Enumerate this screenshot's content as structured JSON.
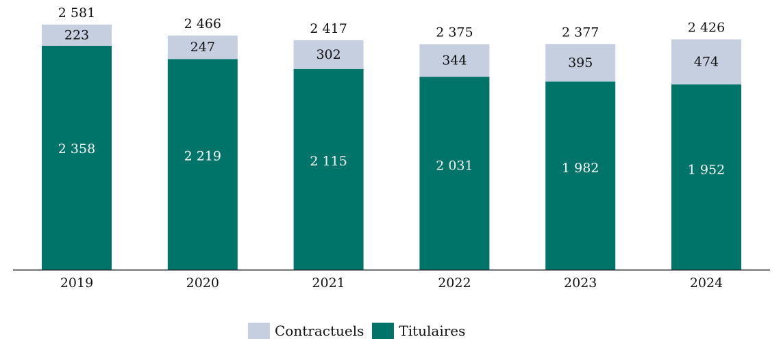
{
  "chart_data": {
    "type": "bar",
    "stacked": true,
    "categories": [
      "2019",
      "2020",
      "2021",
      "2022",
      "2023",
      "2024"
    ],
    "series": [
      {
        "name": "Titulaires",
        "color": "#007469",
        "values": [
          2358,
          2219,
          2115,
          2031,
          1982,
          1952
        ],
        "labels": [
          "2 358",
          "2 219",
          "2 115",
          "2 031",
          "1 982",
          "1 952"
        ]
      },
      {
        "name": "Contractuels",
        "color": "#c5cfe0",
        "values": [
          223,
          247,
          302,
          344,
          395,
          474
        ],
        "labels": [
          "223",
          "247",
          "302",
          "344",
          "395",
          "474"
        ]
      }
    ],
    "totals": [
      2581,
      2466,
      2417,
      2375,
      2377,
      2426
    ],
    "total_labels": [
      "2 581",
      "2 466",
      "2 417",
      "2 375",
      "2 377",
      "2 426"
    ],
    "ylim": [
      0,
      2581
    ],
    "title": "",
    "xlabel": "",
    "ylabel": "",
    "legend": {
      "position": "bottom-center",
      "order": [
        "Contractuels",
        "Titulaires"
      ]
    }
  }
}
